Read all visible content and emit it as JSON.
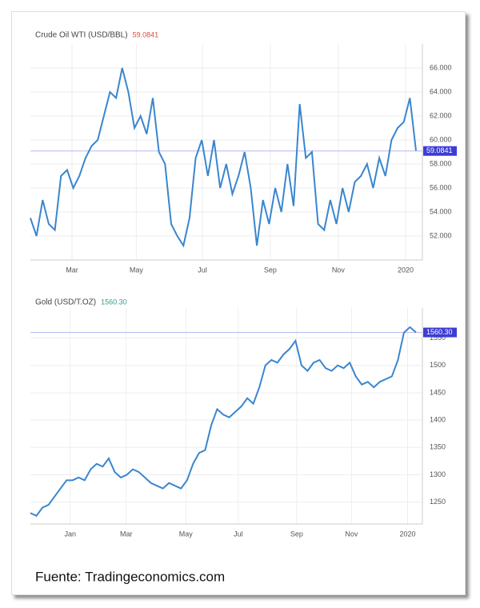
{
  "chart_data": [
    {
      "type": "line",
      "title": "Crude Oil WTI (USD/BBL)",
      "current": {
        "value": 59.0841,
        "label": "59.0841"
      },
      "current_color": "#e04848",
      "color": "#3a86cf",
      "grid": true,
      "values": [
        53.5,
        52,
        55,
        53,
        52.5,
        57,
        57.5,
        56,
        57,
        58.5,
        59.5,
        60,
        62,
        64,
        63.5,
        66,
        64,
        61,
        62,
        60.5,
        63.5,
        59,
        58,
        53,
        52,
        51.2,
        53.5,
        58.5,
        60,
        57,
        60,
        56,
        58,
        55.5,
        57,
        59,
        56,
        51.2,
        55,
        53,
        56,
        54,
        58,
        54.5,
        63,
        58.5,
        59,
        53,
        52.5,
        55,
        53,
        56,
        54,
        56.5,
        57,
        58,
        56,
        58.5,
        57,
        60,
        61,
        61.5,
        63.5,
        59.1
      ],
      "xlim": [
        0,
        63
      ],
      "xticks": [
        {
          "value": 6.8,
          "label": "Mar"
        },
        {
          "value": 17.3,
          "label": "May"
        },
        {
          "value": 28.1,
          "label": "Jul"
        },
        {
          "value": 39.2,
          "label": "Sep"
        },
        {
          "value": 50.3,
          "label": "Nov"
        },
        {
          "value": 61.3,
          "label": "2020"
        }
      ],
      "ylim": [
        50,
        68
      ],
      "yticks": [
        {
          "value": 52,
          "label": "52.000"
        },
        {
          "value": 54,
          "label": "54.000"
        },
        {
          "value": 56,
          "label": "56.000"
        },
        {
          "value": 58,
          "label": "58.000"
        },
        {
          "value": 60,
          "label": "60.000"
        },
        {
          "value": 62,
          "label": "62.000"
        },
        {
          "value": 64,
          "label": "64.000"
        },
        {
          "value": 66,
          "label": "66.000"
        }
      ]
    },
    {
      "type": "line",
      "title": "Gold (USD/T.OZ)",
      "current": {
        "value": 1560.3,
        "label": "1560.30"
      },
      "current_color": "#2a9f88",
      "color": "#3a86cf",
      "grid": true,
      "values": [
        1230,
        1225,
        1240,
        1245,
        1260,
        1275,
        1290,
        1290,
        1295,
        1290,
        1310,
        1320,
        1315,
        1330,
        1305,
        1295,
        1300,
        1310,
        1305,
        1295,
        1285,
        1280,
        1275,
        1285,
        1280,
        1275,
        1290,
        1320,
        1340,
        1345,
        1390,
        1420,
        1410,
        1405,
        1415,
        1425,
        1440,
        1430,
        1460,
        1500,
        1510,
        1505,
        1520,
        1530,
        1545,
        1500,
        1490,
        1505,
        1510,
        1495,
        1490,
        1500,
        1495,
        1505,
        1480,
        1465,
        1470,
        1460,
        1470,
        1475,
        1480,
        1510,
        1560,
        1570,
        1560.3
      ],
      "xlim": [
        0,
        64
      ],
      "xticks": [
        {
          "value": 6.6,
          "label": "Jan"
        },
        {
          "value": 15.9,
          "label": "Mar"
        },
        {
          "value": 25.8,
          "label": "May"
        },
        {
          "value": 34.5,
          "label": "Jul"
        },
        {
          "value": 44.2,
          "label": "Sep"
        },
        {
          "value": 53.3,
          "label": "Nov"
        },
        {
          "value": 62.6,
          "label": "2020"
        }
      ],
      "ylim": [
        1210,
        1605
      ],
      "yticks": [
        1250,
        1300,
        1350,
        1400,
        1450,
        1500,
        1550
      ]
    }
  ],
  "source": "Fuente: Tradingeconomics.com"
}
